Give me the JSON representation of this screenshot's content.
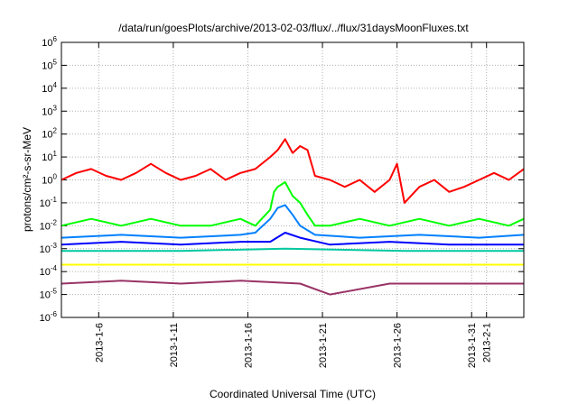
{
  "chart_data": {
    "type": "line",
    "title": "/data/run/goesPlots/archive/2013-02-03/flux/../flux/31daysMoonFluxes.txt",
    "xlabel": "Coordinated Universal Time (UTC)",
    "ylabel": "protons/cm²-s-sr-MeV",
    "y_scale": "log",
    "ylim": [
      1e-06,
      1000000.0
    ],
    "xlim": [
      "2013-01-03 12:00",
      "2013-02-03 12:00"
    ],
    "grid": true,
    "legend": "none",
    "y_tick_exponents": [
      -6,
      -5,
      -4,
      -3,
      -2,
      -1,
      0,
      1,
      2,
      3,
      4,
      5,
      6
    ],
    "x_ticks": [
      {
        "date": "2013-01-06",
        "label": "2013-1-6"
      },
      {
        "date": "2013-01-11",
        "label": "2013-1-11"
      },
      {
        "date": "2013-01-16",
        "label": "2013-1-16"
      },
      {
        "date": "2013-01-21",
        "label": "2013-1-21"
      },
      {
        "date": "2013-01-26",
        "label": "2013-1-26"
      },
      {
        "date": "2013-01-31",
        "label": "2013-1-31"
      },
      {
        "date": "2013-02-01",
        "label": "2013-2-1"
      }
    ],
    "series": [
      {
        "color": "#ff0000",
        "x": [
          "2013-01-03 12:00",
          "2013-01-04 12:00",
          "2013-01-05 12:00",
          "2013-01-06 12:00",
          "2013-01-07 12:00",
          "2013-01-08 12:00",
          "2013-01-09 12:00",
          "2013-01-10 12:00",
          "2013-01-11 12:00",
          "2013-01-12 12:00",
          "2013-01-13 12:00",
          "2013-01-14 12:00",
          "2013-01-15 12:00",
          "2013-01-16 12:00",
          "2013-01-17 12:00",
          "2013-01-18 00:00",
          "2013-01-18 12:00",
          "2013-01-19 00:00",
          "2013-01-19 12:00",
          "2013-01-20 00:00",
          "2013-01-20 12:00",
          "2013-01-21 12:00",
          "2013-01-22 12:00",
          "2013-01-23 12:00",
          "2013-01-24 12:00",
          "2013-01-25 12:00",
          "2013-01-26 00:00",
          "2013-01-26 12:00",
          "2013-01-27 12:00",
          "2013-01-28 12:00",
          "2013-01-29 12:00",
          "2013-01-30 12:00",
          "2013-01-31 12:00",
          "2013-02-01 12:00",
          "2013-02-02 12:00",
          "2013-02-03 12:00"
        ],
        "y": [
          1,
          2,
          3,
          1.5,
          1,
          2,
          5,
          2,
          1,
          1.5,
          3,
          1,
          2,
          3,
          10,
          20,
          60,
          15,
          30,
          20,
          1.5,
          1,
          0.5,
          1,
          0.3,
          1,
          5,
          0.1,
          0.5,
          1,
          0.3,
          0.5,
          1,
          2,
          1,
          3
        ]
      },
      {
        "color": "#00ff00",
        "x": [
          "2013-01-03 12:00",
          "2013-01-05 12:00",
          "2013-01-07 12:00",
          "2013-01-09 12:00",
          "2013-01-11 12:00",
          "2013-01-13 12:00",
          "2013-01-15 12:00",
          "2013-01-16 12:00",
          "2013-01-17 12:00",
          "2013-01-17 18:00",
          "2013-01-18 00:00",
          "2013-01-18 12:00",
          "2013-01-19 00:00",
          "2013-01-19 12:00",
          "2013-01-20 00:00",
          "2013-01-20 12:00",
          "2013-01-21 12:00",
          "2013-01-23 12:00",
          "2013-01-25 12:00",
          "2013-01-27 12:00",
          "2013-01-29 12:00",
          "2013-01-31 12:00",
          "2013-02-02 12:00",
          "2013-02-03 12:00"
        ],
        "y": [
          0.01,
          0.02,
          0.01,
          0.02,
          0.01,
          0.01,
          0.02,
          0.01,
          0.05,
          0.3,
          0.5,
          0.8,
          0.2,
          0.1,
          0.03,
          0.01,
          0.01,
          0.02,
          0.01,
          0.02,
          0.01,
          0.02,
          0.01,
          0.02
        ]
      },
      {
        "color": "#0080ff",
        "x": [
          "2013-01-03 12:00",
          "2013-01-07 12:00",
          "2013-01-11 12:00",
          "2013-01-15 12:00",
          "2013-01-16 12:00",
          "2013-01-17 12:00",
          "2013-01-18 00:00",
          "2013-01-18 12:00",
          "2013-01-19 00:00",
          "2013-01-19 12:00",
          "2013-01-20 12:00",
          "2013-01-23 12:00",
          "2013-01-27 12:00",
          "2013-01-31 12:00",
          "2013-02-03 12:00"
        ],
        "y": [
          0.003,
          0.004,
          0.003,
          0.004,
          0.005,
          0.02,
          0.06,
          0.08,
          0.03,
          0.01,
          0.004,
          0.003,
          0.004,
          0.003,
          0.004
        ]
      },
      {
        "color": "#0000ff",
        "x": [
          "2013-01-03 12:00",
          "2013-01-07 12:00",
          "2013-01-11 12:00",
          "2013-01-15 12:00",
          "2013-01-17 12:00",
          "2013-01-18 12:00",
          "2013-01-19 12:00",
          "2013-01-21 12:00",
          "2013-01-25 12:00",
          "2013-01-29 12:00",
          "2013-02-03 12:00"
        ],
        "y": [
          0.0015,
          0.002,
          0.0015,
          0.002,
          0.002,
          0.005,
          0.003,
          0.0015,
          0.002,
          0.0015,
          0.0015
        ]
      },
      {
        "color": "#00c8a0",
        "x": [
          "2013-01-03 12:00",
          "2013-01-11 12:00",
          "2013-01-18 12:00",
          "2013-01-26 12:00",
          "2013-02-03 12:00"
        ],
        "y": [
          0.0008,
          0.0008,
          0.001,
          0.0008,
          0.0008
        ]
      },
      {
        "color": "#ffff00",
        "x": [
          "2013-01-03 12:00",
          "2013-01-11 12:00",
          "2013-01-18 12:00",
          "2013-01-26 12:00",
          "2013-02-03 12:00"
        ],
        "y": [
          0.0002,
          0.0002,
          0.0002,
          0.0002,
          0.0002
        ]
      },
      {
        "color": "#993366",
        "x": [
          "2013-01-03 12:00",
          "2013-01-07 12:00",
          "2013-01-11 12:00",
          "2013-01-15 12:00",
          "2013-01-19 12:00",
          "2013-01-21 12:00",
          "2013-01-25 12:00",
          "2013-01-29 12:00",
          "2013-02-03 12:00"
        ],
        "y": [
          3e-05,
          4e-05,
          3e-05,
          4e-05,
          3e-05,
          1e-05,
          3e-05,
          3e-05,
          3e-05
        ]
      }
    ]
  }
}
